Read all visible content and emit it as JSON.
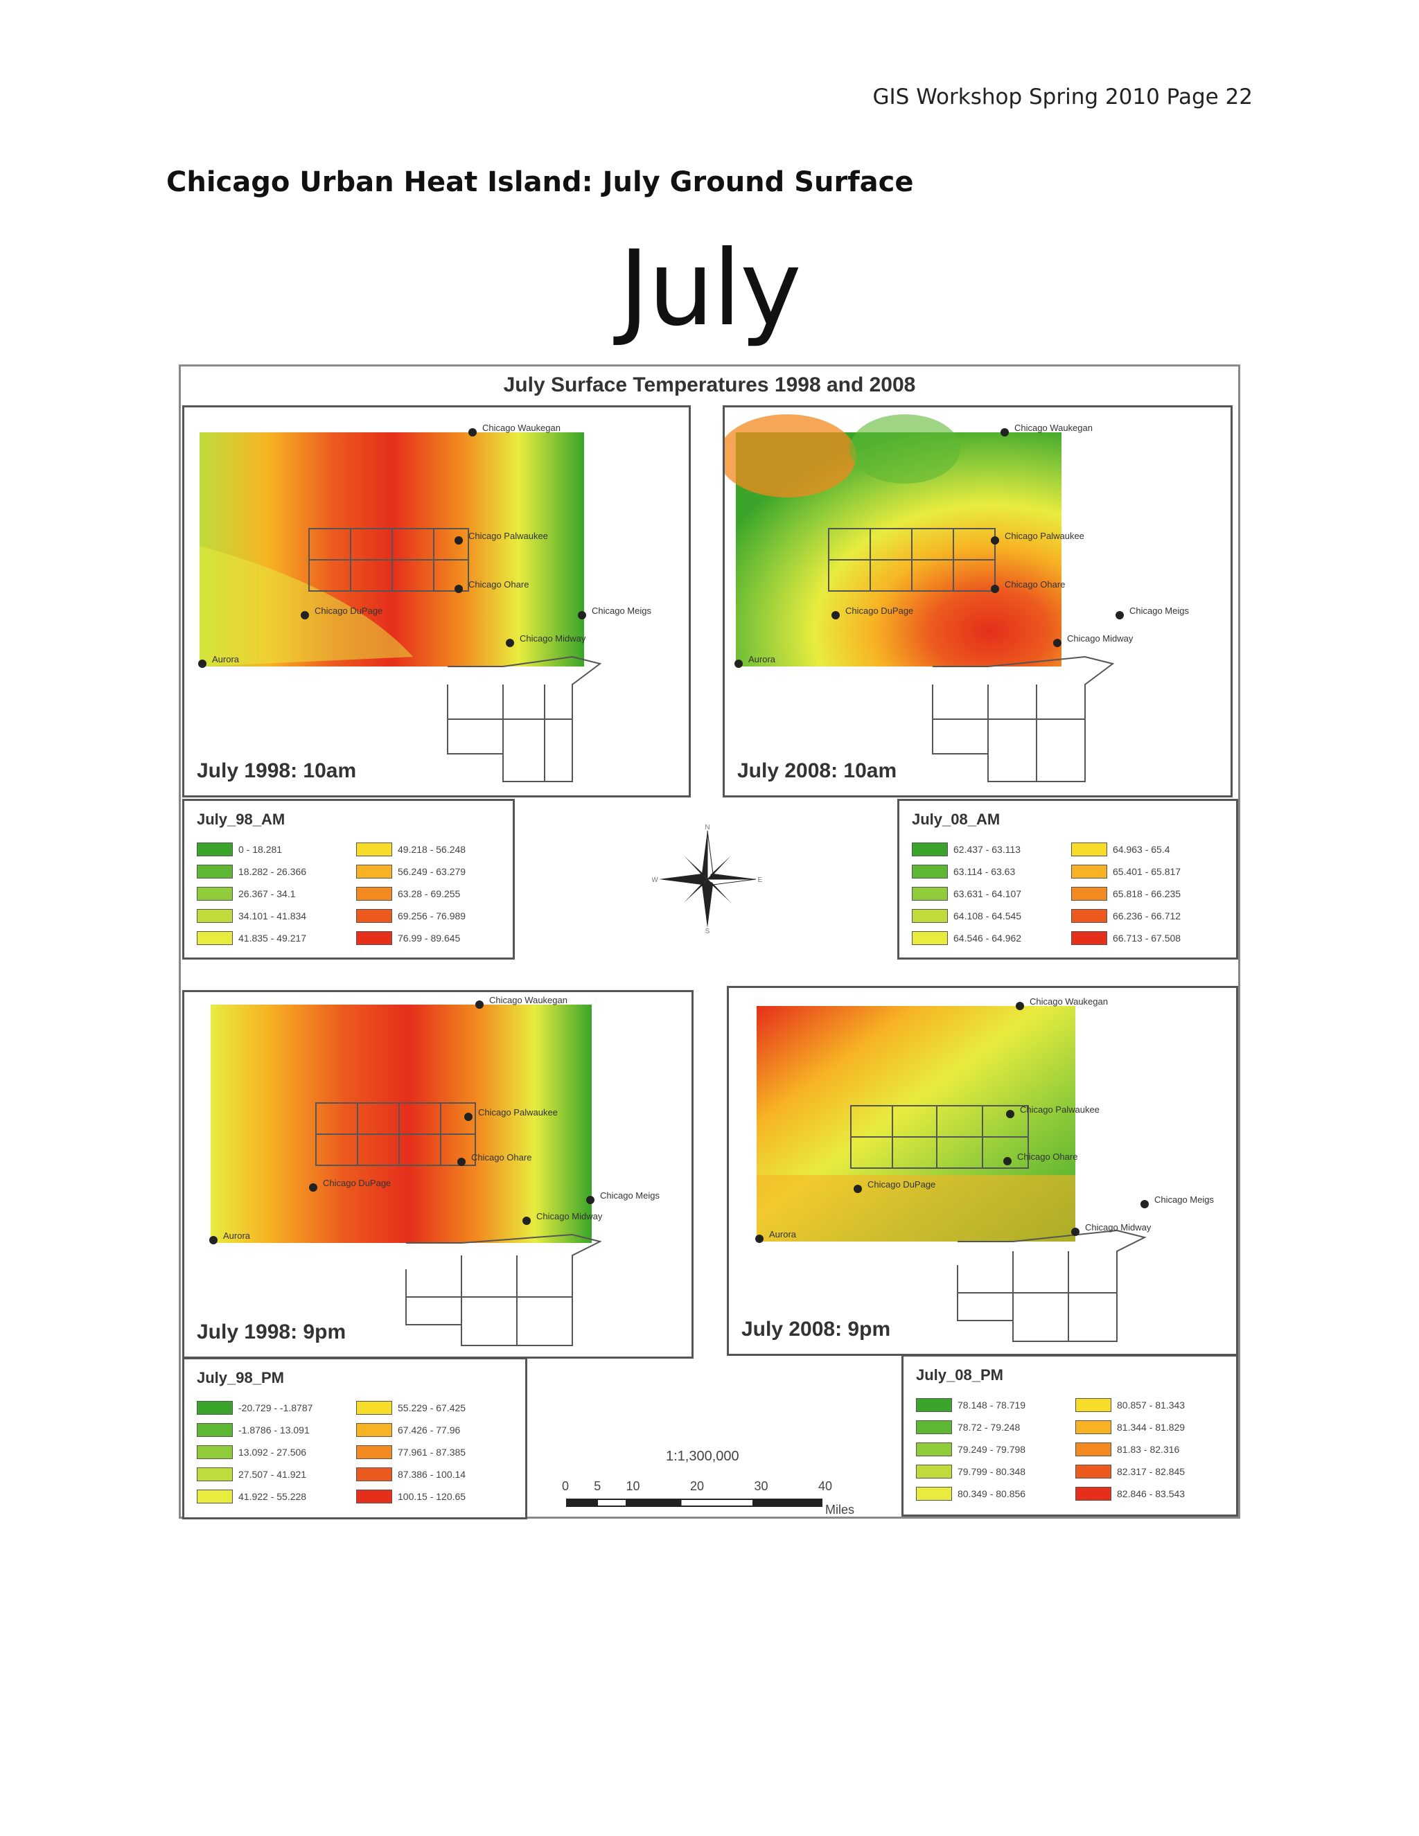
{
  "header": {
    "running_head": "GIS Workshop Spring 2010   Page 22"
  },
  "heading": "Chicago Urban Heat Island: July Ground Surface",
  "big_title": "July",
  "figure": {
    "title": "July Surface Temperatures 1998 and 2008",
    "scale": "1:1,300,000",
    "scale_ticks": [
      "0",
      "5",
      "10",
      "20",
      "30",
      "40"
    ],
    "scale_unit": "Miles",
    "compass": {
      "n": "N",
      "s": "S",
      "e": "E",
      "w": "W"
    }
  },
  "maps": [
    {
      "label": "July 1998: 10am",
      "stations": [
        "Chicago Waukegan",
        "Chicago Palwaukee",
        "Chicago Ohare",
        "Chicago DuPage",
        "Chicago Meigs",
        "Chicago Midway",
        "Aurora"
      ]
    },
    {
      "label": "July 2008: 10am",
      "stations": [
        "Chicago Waukegan",
        "Chicago Palwaukee",
        "Chicago Ohare",
        "Chicago DuPage",
        "Chicago Meigs",
        "Chicago Midway",
        "Aurora"
      ]
    },
    {
      "label": "July 1998: 9pm",
      "stations": [
        "Chicago Waukegan",
        "Chicago Palwaukee",
        "Chicago Ohare",
        "Chicago DuPage",
        "Chicago Meigs",
        "Chicago Midway",
        "Aurora"
      ]
    },
    {
      "label": "July 2008: 9pm",
      "stations": [
        "Chicago Waukegan",
        "Chicago Palwaukee",
        "Chicago Ohare",
        "Chicago DuPage",
        "Chicago Meigs",
        "Chicago Midway",
        "Aurora"
      ]
    }
  ],
  "ramp_colors": [
    "#3aa52a",
    "#5fb833",
    "#8fcb3a",
    "#bfdc3a",
    "#e8ec3f",
    "#f7dc2a",
    "#f7b324",
    "#f28a1f",
    "#ec5a1e",
    "#e52f1b"
  ],
  "legends": [
    {
      "title": "July_98_AM",
      "classes": [
        "0 - 18.281",
        "18.282 - 26.366",
        "26.367 - 34.1",
        "34.101 - 41.834",
        "41.835 - 49.217",
        "49.218 - 56.248",
        "56.249 - 63.279",
        "63.28 - 69.255",
        "69.256 - 76.989",
        "76.99 - 89.645"
      ]
    },
    {
      "title": "July_08_AM",
      "classes": [
        "62.437 - 63.113",
        "63.114 - 63.63",
        "63.631 - 64.107",
        "64.108 - 64.545",
        "64.546 - 64.962",
        "64.963 - 65.4",
        "65.401 - 65.817",
        "65.818 - 66.235",
        "66.236 - 66.712",
        "66.713 - 67.508"
      ]
    },
    {
      "title": "July_98_PM",
      "classes": [
        "-20.729 - -1.8787",
        "-1.8786 - 13.091",
        "13.092 - 27.506",
        "27.507 - 41.921",
        "41.922 - 55.228",
        "55.229 - 67.425",
        "67.426 - 77.96",
        "77.961 - 87.385",
        "87.386 - 100.14",
        "100.15 - 120.65"
      ]
    },
    {
      "title": "July_08_PM",
      "classes": [
        "78.148 - 78.719",
        "78.72 - 79.248",
        "79.249 - 79.798",
        "79.799 - 80.348",
        "80.349 - 80.856",
        "80.857 - 81.343",
        "81.344 - 81.829",
        "81.83 - 82.316",
        "82.317 - 82.845",
        "82.846 - 83.543"
      ]
    }
  ]
}
